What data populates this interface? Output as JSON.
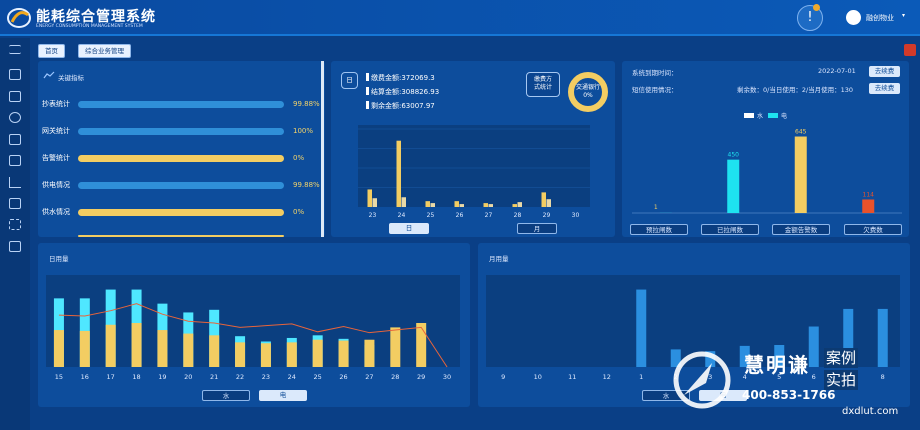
{
  "header": {
    "title": "能耗综合管理系统",
    "subtitle": "ENERGY CONSUMPTION MANAGEMENT SYSTEM",
    "notification_badge": "1",
    "user_name": "融创物业"
  },
  "breadcrumbs": [
    "首页",
    "综合业务管理"
  ],
  "key_indicators": {
    "title": "关键指标",
    "items": [
      {
        "label": "抄表统计",
        "value": "99.88%",
        "fraction": 0.9988,
        "color": "#2f8fd8"
      },
      {
        "label": "网关统计",
        "value": "100%",
        "fraction": 1.0,
        "color": "#2f8fd8"
      },
      {
        "label": "告警统计",
        "value": "0%",
        "fraction": 0,
        "color": "#f3cd62"
      },
      {
        "label": "供电情况",
        "value": "99.88%",
        "fraction": 0.9988,
        "color": "#2f8fd8"
      },
      {
        "label": "供水情况",
        "value": "0%",
        "fraction": 0,
        "color": "#f3cd62"
      }
    ]
  },
  "payment": {
    "icon_label": "日",
    "lines": [
      "缴费金额:372069.3",
      "结算金额:308826.93",
      "剩余金额:63007.97"
    ],
    "method_button": [
      "缴费方",
      "式统计"
    ],
    "ring_label": [
      "交通银行",
      "0%"
    ],
    "tabs": [
      "日",
      "月"
    ],
    "chart_data": {
      "type": "bar",
      "categories": [
        "23",
        "",
        "24",
        "",
        "25",
        "",
        "26",
        "",
        "27",
        "",
        "28",
        "",
        "29",
        "",
        "30"
      ],
      "series": [
        {
          "values": [
            18,
            0,
            68,
            0,
            6,
            0,
            6,
            0,
            4,
            0,
            3,
            0,
            15,
            0,
            0
          ],
          "color": "#f3cd62"
        },
        {
          "values": [
            9,
            0,
            10,
            0,
            4,
            0,
            3,
            0,
            3,
            0,
            5,
            0,
            8,
            0,
            0
          ],
          "color": "#ead9a6"
        }
      ],
      "ylim": [
        0,
        80
      ]
    }
  },
  "sms": {
    "expire_label": "系统到期时间：",
    "expire_date": "2022-07-01",
    "renew_btn": "去续费",
    "usage_label": "短信使用情况：",
    "usage_detail": "剩余数：0/当日使用：2/当月使用：130",
    "renew_btn2": "去续费",
    "legend": [
      "水",
      "电"
    ],
    "chart_data": {
      "type": "bar",
      "categories": [
        "预拉闸数",
        "已拉闸数",
        "金额告警数",
        "欠费数"
      ],
      "series": [
        {
          "name": "水",
          "values": [
            0,
            0,
            645,
            114
          ]
        },
        {
          "name": "电",
          "values": [
            1,
            450,
            0,
            0
          ]
        }
      ],
      "labels": [
        "1",
        "450",
        "645",
        "114"
      ],
      "ylim": [
        0,
        700
      ]
    },
    "buttons": [
      "预拉闸数",
      "已拉闸数",
      "金额告警数",
      "欠费数"
    ]
  },
  "daily": {
    "title": "日用量",
    "tabs": [
      "水",
      "电"
    ],
    "chart_data": {
      "type": "bar",
      "categories": [
        "15",
        "16",
        "17",
        "18",
        "19",
        "20",
        "21",
        "22",
        "23",
        "24",
        "25",
        "26",
        "27",
        "28",
        "29",
        "30"
      ],
      "series": [
        {
          "name": "水",
          "values": [
            78,
            78,
            88,
            88,
            72,
            62,
            65,
            35,
            29,
            33,
            36,
            32,
            25,
            0,
            0,
            0
          ]
        },
        {
          "name": "电",
          "values": [
            42,
            41,
            48,
            50,
            42,
            38,
            36,
            28,
            27,
            28,
            31,
            30,
            31,
            45,
            50,
            0
          ]
        },
        {
          "name": "line",
          "values": [
            59,
            58,
            64,
            72,
            60,
            52,
            50,
            45,
            47,
            49,
            40,
            46,
            39,
            42,
            45,
            0
          ]
        }
      ],
      "ylim": [
        0,
        100
      ]
    }
  },
  "monthly": {
    "title": "月用量",
    "tabs": [
      "水",
      "电"
    ],
    "chart_data": {
      "type": "bar",
      "categories": [
        "9",
        "10",
        "11",
        "12",
        "1",
        "2",
        "3",
        "4",
        "5",
        "6",
        "7",
        "8"
      ],
      "series": [
        {
          "name": "电",
          "values": [
            0,
            0,
            0,
            0,
            88,
            20,
            18,
            24,
            25,
            46,
            66,
            66
          ]
        }
      ],
      "ylim": [
        0,
        100
      ]
    }
  },
  "watermark": {
    "brand": "慧明谦",
    "tag1": "案例",
    "tag2": "实拍",
    "phone": "400-853-1766",
    "site": "dxdlut.com"
  }
}
